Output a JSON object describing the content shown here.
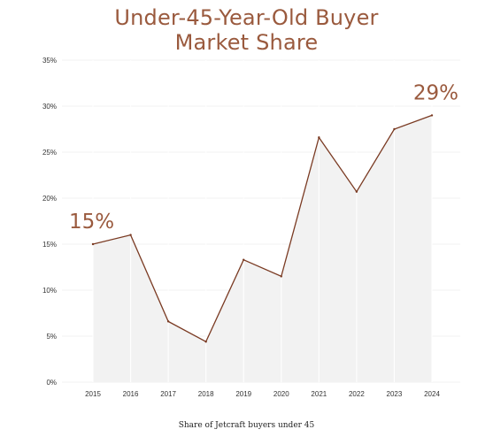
{
  "chart_data": {
    "type": "area",
    "title_lines": [
      "Under-45-Year-Old Buyer",
      "Market Share"
    ],
    "caption": "Share of Jetcraft buyers under 45",
    "x": [
      "2015",
      "2016",
      "2017",
      "2018",
      "2019",
      "2020",
      "2021",
      "2022",
      "2023",
      "2024"
    ],
    "values": [
      15.0,
      16.0,
      6.6,
      4.4,
      13.3,
      11.5,
      26.6,
      20.7,
      27.5,
      29.0
    ],
    "ylim": [
      0,
      35
    ],
    "yticks": [
      "0%",
      "5%",
      "10%",
      "15%",
      "20%",
      "25%",
      "30%",
      "35%"
    ],
    "grid": true,
    "annotations": [
      {
        "text": "15%",
        "x": "2015"
      },
      {
        "text": "29%",
        "x": "2024"
      }
    ],
    "colors": {
      "line": "#7a3a22",
      "fill": "#f2f2f2",
      "title": "#9a5a3e",
      "grid": "#ececec"
    }
  }
}
